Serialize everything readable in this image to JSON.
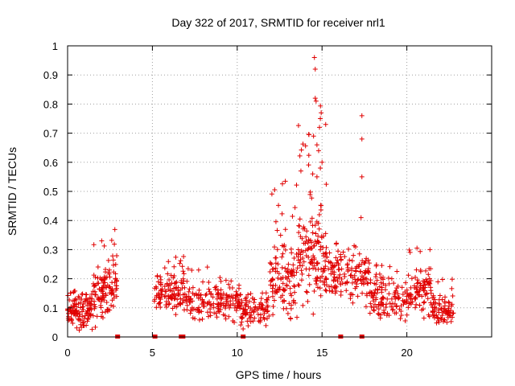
{
  "chart_data": {
    "type": "scatter",
    "title": "Day 322 of 2017, SRMTID for receiver nrl1",
    "xlabel": "GPS time / hours",
    "ylabel": "SRMTID / TECUs",
    "xlim": [
      0,
      25
    ],
    "ylim": [
      0,
      1
    ],
    "x_ticks": [
      "0",
      "5",
      "10",
      "15",
      "20"
    ],
    "x_tick_values": [
      0,
      5,
      10,
      15,
      20
    ],
    "y_ticks": [
      "0",
      "0.1",
      "0.2",
      "0.3",
      "0.4",
      "0.5",
      "0.6",
      "0.7",
      "0.8",
      "0.9",
      "1"
    ],
    "y_tick_values": [
      0,
      0.1,
      0.2,
      0.3,
      0.4,
      0.5,
      0.6,
      0.7,
      0.8,
      0.9,
      1
    ],
    "grid": true,
    "marker": "+",
    "color": "#e00000",
    "series": [
      {
        "name": "SRMTID",
        "segments": [
          {
            "x_start": 0.0,
            "x_end": 1.5,
            "base": 0.09,
            "spread": 0.05,
            "peak": 0.16,
            "count": 120
          },
          {
            "x_start": 1.5,
            "x_end": 2.3,
            "base": 0.14,
            "spread": 0.07,
            "peak": 0.34,
            "count": 70
          },
          {
            "x_start": 2.3,
            "x_end": 2.9,
            "base": 0.17,
            "spread": 0.08,
            "peak": 0.39,
            "count": 50
          },
          {
            "x_start": 5.1,
            "x_end": 7.0,
            "base": 0.15,
            "spread": 0.06,
            "peak": 0.28,
            "count": 120
          },
          {
            "x_start": 7.0,
            "x_end": 10.2,
            "base": 0.12,
            "spread": 0.05,
            "peak": 0.25,
            "count": 170
          },
          {
            "x_start": 10.2,
            "x_end": 11.9,
            "base": 0.09,
            "spread": 0.04,
            "peak": 0.16,
            "count": 90
          },
          {
            "x_start": 11.9,
            "x_end": 13.6,
            "base": 0.19,
            "spread": 0.1,
            "peak": 0.54,
            "count": 120
          },
          {
            "x_start": 13.6,
            "x_end": 15.3,
            "base": 0.26,
            "spread": 0.14,
            "peak": 0.8,
            "count": 150
          },
          {
            "x_start": 15.3,
            "x_end": 17.8,
            "base": 0.21,
            "spread": 0.07,
            "peak": 0.33,
            "count": 140
          },
          {
            "x_start": 17.8,
            "x_end": 20.1,
            "base": 0.13,
            "spread": 0.06,
            "peak": 0.26,
            "count": 130
          },
          {
            "x_start": 20.1,
            "x_end": 21.5,
            "base": 0.16,
            "spread": 0.07,
            "peak": 0.32,
            "count": 90
          },
          {
            "x_start": 21.5,
            "x_end": 22.8,
            "base": 0.09,
            "spread": 0.04,
            "peak": 0.2,
            "count": 80
          }
        ],
        "outliers": [
          {
            "x": 14.55,
            "y": 0.96
          },
          {
            "x": 14.6,
            "y": 0.92
          },
          {
            "x": 14.6,
            "y": 0.82
          },
          {
            "x": 14.65,
            "y": 0.81
          },
          {
            "x": 14.95,
            "y": 0.77
          },
          {
            "x": 14.9,
            "y": 0.75
          },
          {
            "x": 14.85,
            "y": 0.72
          },
          {
            "x": 14.5,
            "y": 0.69
          },
          {
            "x": 14.7,
            "y": 0.66
          },
          {
            "x": 14.8,
            "y": 0.64
          },
          {
            "x": 15.0,
            "y": 0.6
          },
          {
            "x": 14.9,
            "y": 0.58
          },
          {
            "x": 14.45,
            "y": 0.56
          },
          {
            "x": 14.7,
            "y": 0.55
          },
          {
            "x": 17.35,
            "y": 0.76
          },
          {
            "x": 17.35,
            "y": 0.68
          },
          {
            "x": 17.35,
            "y": 0.55
          },
          {
            "x": 17.3,
            "y": 0.41
          }
        ],
        "zero_markers": [
          2.95,
          5.15,
          6.7,
          6.8,
          10.35,
          16.1,
          17.35
        ]
      }
    ]
  }
}
